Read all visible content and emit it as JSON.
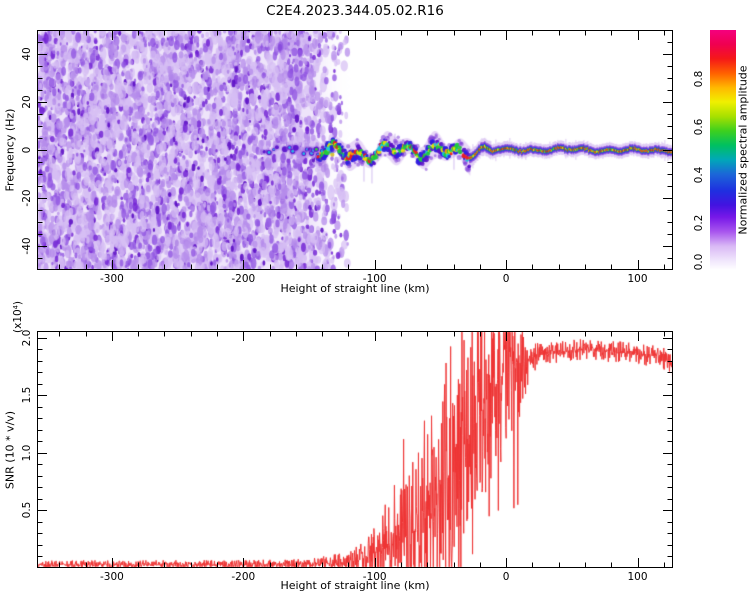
{
  "title": "C2E4.2023.344.05.02.R16",
  "chart_data": [
    {
      "type": "heatmap",
      "name": "spectrogram",
      "title": "C2E4.2023.344.05.02.R16",
      "xlabel": "Height of straight line (km)",
      "ylabel": "Frequency (Hz)",
      "xlim": [
        -357,
        127
      ],
      "ylim": [
        -50,
        50
      ],
      "xticks": [
        -300,
        -200,
        -100,
        0,
        100
      ],
      "xtick_labels": [
        "-300",
        "-200",
        "-100",
        "0",
        "100"
      ],
      "xtick_minor_step": 20,
      "yticks": [
        -40,
        -20,
        0,
        20,
        40
      ],
      "ytick_labels": [
        "-40",
        "-20",
        "0",
        "20",
        "40"
      ],
      "ytick_minor_step": 5,
      "grid": false,
      "colorbar": {
        "label": "Normalized spectral amplitude",
        "range": [
          0,
          1
        ],
        "ticks": [
          0.0,
          0.2,
          0.4,
          0.6,
          0.8
        ],
        "tick_labels": [
          "0.0",
          "0.2",
          "0.4",
          "0.6",
          "0.8"
        ],
        "colormap_stops": [
          [
            0.0,
            "#ffffff"
          ],
          [
            0.04,
            "#f0e6fc"
          ],
          [
            0.1,
            "#d9b8f5"
          ],
          [
            0.16,
            "#a855ee"
          ],
          [
            0.22,
            "#7718e8"
          ],
          [
            0.27,
            "#4313e0"
          ],
          [
            0.33,
            "#1f2fe0"
          ],
          [
            0.4,
            "#1b67d8"
          ],
          [
            0.46,
            "#00a8b8"
          ],
          [
            0.52,
            "#00c060"
          ],
          [
            0.58,
            "#3ed01e"
          ],
          [
            0.64,
            "#a8e000"
          ],
          [
            0.7,
            "#f0f000"
          ],
          [
            0.76,
            "#ffb800"
          ],
          [
            0.82,
            "#ff6000"
          ],
          [
            0.88,
            "#f51818"
          ],
          [
            0.94,
            "#f00050"
          ],
          [
            1.0,
            "#f5007e"
          ]
        ]
      },
      "content": {
        "noise_region_km": [
          -357,
          -120
        ],
        "noise_bg_color": "#eee4fa",
        "noise_blob_palette": [
          "#d6bdf3",
          "#b58ceb",
          "#9257e2",
          "#7427d5",
          "#5c0ec4"
        ],
        "signal_trace": {
          "centre_frequency_hz": 0,
          "sporadic_dots_km": [
            -202,
            -143
          ],
          "speckled_band_km": [
            -143,
            -28
          ],
          "narrow_band_km": [
            -28,
            127
          ],
          "wiggle_amplitude_hz_band": 5,
          "wiggle_amplitude_hz_tail": 1.5,
          "band_halfwidth_hz_band": 8,
          "band_halfwidth_hz_tail": 3,
          "core_amplitude_normalized": 0.9
        }
      }
    },
    {
      "type": "line",
      "name": "snr_profile",
      "xlabel": "Height of straight line (km)",
      "ylabel": "SNR (10 * v/v)",
      "y_multiplier": "(x10⁴)",
      "xlim": [
        -357,
        127
      ],
      "ylim": [
        0,
        2.06
      ],
      "xticks": [
        -300,
        -200,
        -100,
        0,
        100
      ],
      "xtick_labels": [
        "-300",
        "-200",
        "-100",
        "0",
        "100"
      ],
      "xtick_minor_step": 20,
      "yticks": [
        0.5,
        1.0,
        1.5,
        2.0
      ],
      "ytick_labels": [
        "0.5",
        "1.0",
        "1.5",
        "2.0"
      ],
      "ytick_minor_step": 0.1,
      "grid": false,
      "series": [
        {
          "name": "SNR",
          "color": "#ee3333",
          "envelope_keypoints": {
            "km": [
              -357,
              -200,
              -150,
              -132,
              -120,
              -112,
              -105,
              -98,
              -90,
              -82,
              -75,
              -68,
              -60,
              -52,
              -46,
              -40,
              -34,
              -28,
              -22,
              -16,
              -10,
              -4,
              2,
              8,
              14,
              20,
              30,
              45,
              60,
              75,
              90,
              105,
              118,
              124,
              127
            ],
            "mean": [
              0.03,
              0.03,
              0.035,
              0.04,
              0.05,
              0.07,
              0.1,
              0.14,
              0.18,
              0.22,
              0.28,
              0.32,
              0.45,
              0.55,
              0.75,
              0.8,
              0.95,
              1.15,
              1.3,
              1.45,
              1.55,
              1.65,
              1.7,
              1.75,
              1.8,
              1.83,
              1.86,
              1.88,
              1.9,
              1.89,
              1.87,
              1.85,
              1.83,
              1.79,
              1.76
            ],
            "spread": [
              0.018,
              0.018,
              0.022,
              0.035,
              0.05,
              0.06,
              0.09,
              0.13,
              0.16,
              0.2,
              0.26,
              0.3,
              0.4,
              0.45,
              0.55,
              0.6,
              0.6,
              0.55,
              0.5,
              0.5,
              0.45,
              0.35,
              0.32,
              0.28,
              0.15,
              0.07,
              0.045,
              0.045,
              0.045,
              0.045,
              0.045,
              0.045,
              0.05,
              0.06,
              0.05
            ]
          },
          "spike_events": [
            [
              -92,
              0.55
            ],
            [
              -85,
              0.72
            ],
            [
              -78,
              1.12
            ],
            [
              -71,
              0.92
            ],
            [
              -62,
              1.28
            ],
            [
              -55,
              1.05
            ],
            [
              -47,
              1.42
            ],
            [
              -43,
              1.3
            ],
            [
              -30,
              1.72
            ],
            [
              -19,
              2.0
            ],
            [
              -13,
              0.45
            ],
            [
              -9,
              2.04
            ],
            [
              -6,
              0.5
            ],
            [
              -2,
              2.06
            ],
            [
              3,
              2.05
            ],
            [
              6,
              0.52
            ],
            [
              9,
              0.55
            ],
            [
              12,
              1.95
            ]
          ]
        }
      ]
    }
  ]
}
